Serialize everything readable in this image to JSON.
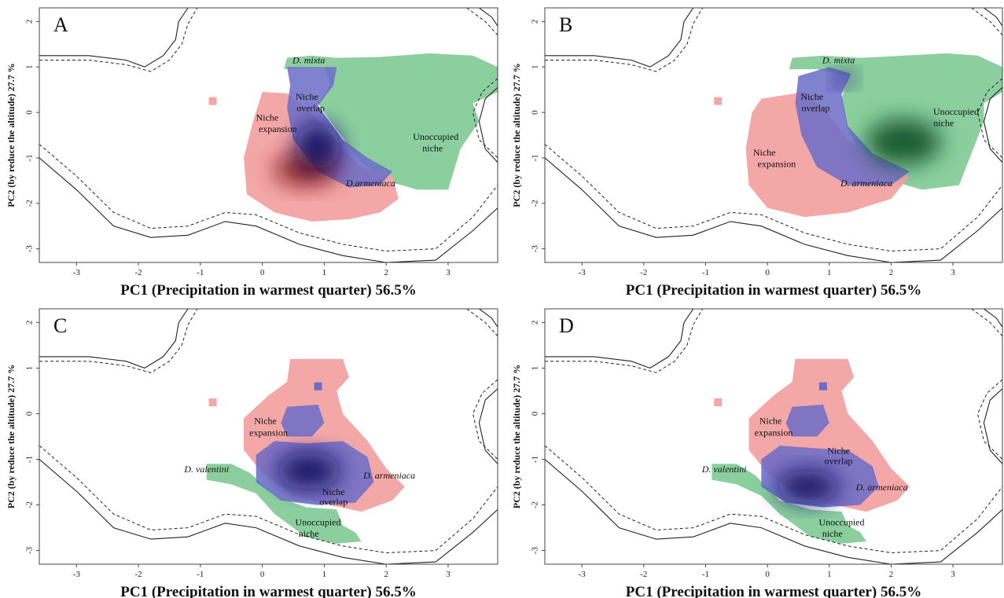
{
  "colors": {
    "expansion": "#f4a7a7",
    "overlap": "#6a6cc8",
    "unoccupied": "#8bcf9f",
    "overlap_dark": "#0b0f5e",
    "expansion_dark": "#7a0d14",
    "unoccupied_dark": "#0b4f22"
  },
  "chart_data": [
    {
      "type": "heatmap",
      "panel": "A",
      "xlabel": "PC1 (Precipitation in warmest quarter) 56.5%",
      "ylabel": "PC2 (by reduce the altitude) 27.7 %",
      "xlim": [
        -3.6,
        3.8
      ],
      "ylim": [
        -3.3,
        2.3
      ],
      "xticks": [
        -3,
        -2,
        -1,
        0,
        1,
        2,
        3
      ],
      "yticks": [
        -3,
        -2,
        -1,
        0,
        1,
        2
      ],
      "annotations": [
        {
          "text": "D. mixta",
          "italic": true,
          "x": 0.75,
          "y": 1.08
        },
        {
          "text": "Niche",
          "x": 0.72,
          "y": 0.28
        },
        {
          "text": "overlap",
          "x": 0.78,
          "y": 0.03
        },
        {
          "text": "Niche",
          "x": 0.08,
          "y": -0.18
        },
        {
          "text": "expansion",
          "x": 0.25,
          "y": -0.43
        },
        {
          "text": "Unoccupied",
          "x": 2.8,
          "y": -0.6
        },
        {
          "text": "niche",
          "x": 2.75,
          "y": -0.85
        },
        {
          "text": "D.armeniaca",
          "x": 1.75,
          "y": -1.62,
          "italic": true
        }
      ],
      "regions": [
        {
          "name": "Niche expansion",
          "color_key": "expansion"
        },
        {
          "name": "Niche overlap",
          "color_key": "overlap"
        },
        {
          "name": "Unoccupied niche",
          "color_key": "unoccupied"
        }
      ]
    },
    {
      "type": "heatmap",
      "panel": "B",
      "xlabel": "PC1 (Precipitation in warmest quarter) 56.5%",
      "ylabel": "PC2 (by reduce the altitude) 27.7 %",
      "xlim": [
        -3.6,
        3.8
      ],
      "ylim": [
        -3.3,
        2.3
      ],
      "xticks": [
        -3,
        -2,
        -1,
        0,
        1,
        2,
        3
      ],
      "yticks": [
        -3,
        -2,
        -1,
        0,
        1,
        2
      ],
      "annotations": [
        {
          "text": "D. mixta",
          "italic": true,
          "x": 1.15,
          "y": 1.08
        },
        {
          "text": "Niche",
          "x": 0.72,
          "y": 0.28
        },
        {
          "text": "overlap",
          "x": 0.78,
          "y": 0.03
        },
        {
          "text": "Unoccupied",
          "x": 3.05,
          "y": -0.05
        },
        {
          "text": "niche",
          "x": 2.85,
          "y": -0.3
        },
        {
          "text": "Niche",
          "x": -0.05,
          "y": -0.95
        },
        {
          "text": "expansion",
          "x": 0.15,
          "y": -1.2
        },
        {
          "text": "D. armeniaca",
          "x": 1.6,
          "y": -1.62,
          "italic": true
        }
      ],
      "regions": [
        {
          "name": "Niche expansion",
          "color_key": "expansion"
        },
        {
          "name": "Niche overlap",
          "color_key": "overlap"
        },
        {
          "name": "Unoccupied niche",
          "color_key": "unoccupied"
        }
      ]
    },
    {
      "type": "heatmap",
      "panel": "C",
      "xlabel": "PC1 (Precipitation in warmest quarter) 56.5%",
      "ylabel": "PC2 (by reduce the altitude) 27.7 %",
      "xlim": [
        -3.6,
        3.8
      ],
      "ylim": [
        -3.3,
        2.3
      ],
      "xticks": [
        -3,
        -2,
        -1,
        0,
        1,
        2,
        3
      ],
      "yticks": [
        -3,
        -2,
        -1,
        0,
        1,
        2
      ],
      "annotations": [
        {
          "text": "Niche",
          "x": 0.05,
          "y": -0.22
        },
        {
          "text": "expansion",
          "x": 0.1,
          "y": -0.48
        },
        {
          "text": "D. valentini",
          "x": -0.9,
          "y": -1.28,
          "italic": true
        },
        {
          "text": "D. armeniaca",
          "x": 2.05,
          "y": -1.42,
          "italic": true
        },
        {
          "text": "Niche",
          "x": 1.15,
          "y": -1.78
        },
        {
          "text": "overlap",
          "x": 1.15,
          "y": -2.0
        },
        {
          "text": "Unoccupied",
          "x": 0.9,
          "y": -2.45
        },
        {
          "text": "niche",
          "x": 0.75,
          "y": -2.7
        }
      ],
      "regions": [
        {
          "name": "Niche expansion",
          "color_key": "expansion"
        },
        {
          "name": "Niche overlap",
          "color_key": "overlap"
        },
        {
          "name": "Unoccupied niche",
          "color_key": "unoccupied"
        }
      ]
    },
    {
      "type": "heatmap",
      "panel": "D",
      "xlabel": "PC1 (Precipitation in warmest quarter) 56.5%",
      "ylabel": "PC2 (by reduce the altitude) 27.7 %",
      "xlim": [
        -3.6,
        3.8
      ],
      "ylim": [
        -3.3,
        2.3
      ],
      "xticks": [
        -3,
        -2,
        -1,
        0,
        1,
        2,
        3
      ],
      "yticks": [
        -3,
        -2,
        -1,
        0,
        1,
        2
      ],
      "annotations": [
        {
          "text": "Niche",
          "x": 0.05,
          "y": -0.22
        },
        {
          "text": "expansion",
          "x": 0.1,
          "y": -0.48
        },
        {
          "text": "Niche",
          "x": 1.15,
          "y": -0.88
        },
        {
          "text": "overlap",
          "x": 1.15,
          "y": -1.1
        },
        {
          "text": "D. valentini",
          "x": -0.7,
          "y": -1.28,
          "italic": true
        },
        {
          "text": "D. armeniaca",
          "x": 1.85,
          "y": -1.68,
          "italic": true
        },
        {
          "text": "Unoccupied",
          "x": 1.2,
          "y": -2.45
        },
        {
          "text": "niche",
          "x": 1.05,
          "y": -2.7
        }
      ],
      "regions": [
        {
          "name": "Niche expansion",
          "color_key": "expansion"
        },
        {
          "name": "Niche overlap",
          "color_key": "overlap"
        },
        {
          "name": "Unoccupied niche",
          "color_key": "unoccupied"
        }
      ]
    }
  ]
}
